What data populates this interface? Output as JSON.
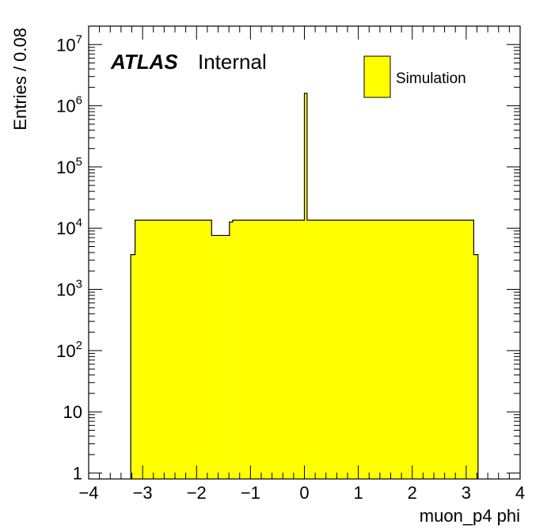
{
  "label": {
    "experiment": "ATLAS",
    "status": "Internal"
  },
  "colors": {
    "fill": "#ffff00",
    "line": "#000000"
  },
  "chart_data": {
    "type": "histogram",
    "xlabel": "muon_p4 phi",
    "ylabel": "Entries / 0.08",
    "xlim": [
      -4,
      4
    ],
    "ylim": [
      0.8,
      20000000
    ],
    "ylog": true,
    "grid": false,
    "legend_position": "top-right",
    "x_ticks": [
      -4,
      -3,
      -2,
      -1,
      0,
      1,
      2,
      3,
      4
    ],
    "x_tick_labels": [
      "−4",
      "−3",
      "−2",
      "−1",
      "0",
      "1",
      "2",
      "3",
      "4"
    ],
    "y_ticks": [
      {
        "value": 1,
        "base": "1",
        "exp": ""
      },
      {
        "value": 10,
        "base": "10",
        "exp": ""
      },
      {
        "value": 100,
        "base": "10",
        "exp": "2"
      },
      {
        "value": 1000,
        "base": "10",
        "exp": "3"
      },
      {
        "value": 10000,
        "base": "10",
        "exp": "4"
      },
      {
        "value": 100000,
        "base": "10",
        "exp": "5"
      },
      {
        "value": 1000000,
        "base": "10",
        "exp": "6"
      },
      {
        "value": 10000000,
        "base": "10",
        "exp": "7"
      }
    ],
    "series": [
      {
        "name": "Simulation",
        "bins": [
          {
            "x0": -3.22,
            "x1": -3.14,
            "y": 3700
          },
          {
            "x0": -3.14,
            "x1": -1.72,
            "y": 13500
          },
          {
            "x0": -1.72,
            "x1": -1.39,
            "y": 7600
          },
          {
            "x0": -1.39,
            "x1": -1.33,
            "y": 12600
          },
          {
            "x0": -1.33,
            "x1": 0.0,
            "y": 13500
          },
          {
            "x0": 0.0,
            "x1": 0.05,
            "y": 1600000
          },
          {
            "x0": 0.05,
            "x1": 3.14,
            "y": 13500
          },
          {
            "x0": 3.14,
            "x1": 3.22,
            "y": 3700
          }
        ]
      }
    ]
  }
}
